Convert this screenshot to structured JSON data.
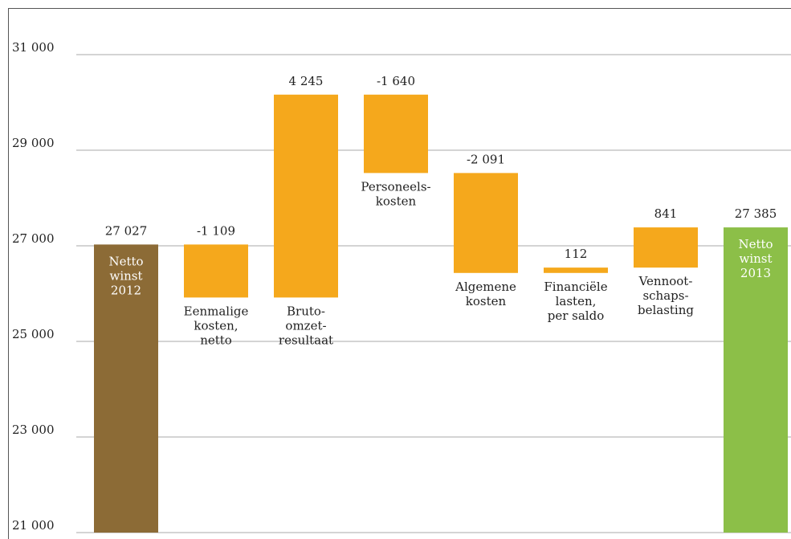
{
  "chart_data": {
    "type": "waterfall",
    "categories": [
      [
        "Netto",
        "winst",
        "2012"
      ],
      [
        "Eenmalige",
        "kosten,",
        "netto"
      ],
      [
        "Bruto-",
        "omzet-",
        "resultaat"
      ],
      [
        "Personeels-",
        "kosten"
      ],
      [
        "Algemene",
        "kosten"
      ],
      [
        "Financiële",
        "lasten,",
        "per saldo"
      ],
      [
        "Vennoot-",
        "schaps-",
        "belasting"
      ],
      [
        "Netto",
        "winst",
        "2013"
      ]
    ],
    "values": [
      27027,
      -1109,
      4245,
      -1640,
      -2091,
      112,
      841,
      27385
    ],
    "value_labels": [
      "27 027",
      "-1 109",
      "4 245",
      "-1 640",
      "-2 091",
      "112",
      "841",
      "27 385"
    ],
    "colors": [
      "#8c6b36",
      "#f5a81c",
      "#f5a81c",
      "#f5a81c",
      "#f5a81c",
      "#f5a81c",
      "#f5a81c",
      "#8cbf48"
    ],
    "ylim": [
      21000,
      32000
    ],
    "yticks": [
      {
        "value": 21000,
        "label": "21 000"
      },
      {
        "value": 23000,
        "label": "23 000"
      },
      {
        "value": 25000,
        "label": "25 000"
      },
      {
        "value": 27000,
        "label": "27 000"
      },
      {
        "value": 29000,
        "label": "29 000"
      },
      {
        "value": 31000,
        "label": "31 000"
      }
    ],
    "grid": true
  }
}
